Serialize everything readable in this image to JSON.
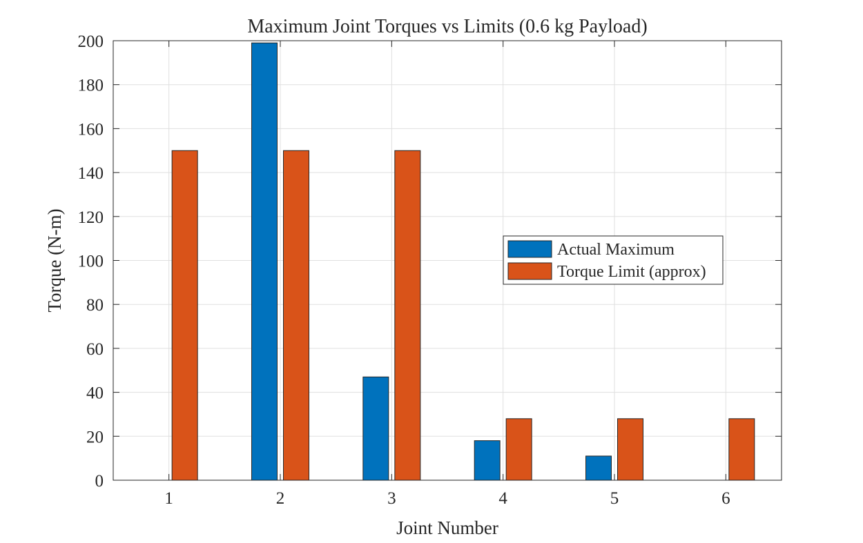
{
  "chart_data": {
    "type": "bar",
    "title": "Maximum Joint Torques vs Limits (0.6 kg Payload)",
    "xlabel": "Joint Number",
    "ylabel": "Torque (N-m)",
    "categories": [
      "1",
      "2",
      "3",
      "4",
      "5",
      "6"
    ],
    "ylim": [
      0,
      200
    ],
    "yticks": [
      0,
      20,
      40,
      60,
      80,
      100,
      120,
      140,
      160,
      180,
      200
    ],
    "grid": true,
    "legend_position": "right-center",
    "series": [
      {
        "name": "Actual Maximum",
        "color": "#0072BD",
        "values": [
          0,
          199,
          47,
          18,
          11,
          0
        ]
      },
      {
        "name": "Torque Limit (approx)",
        "color": "#D95319",
        "values": [
          150,
          150,
          150,
          28,
          28,
          28
        ]
      }
    ]
  }
}
